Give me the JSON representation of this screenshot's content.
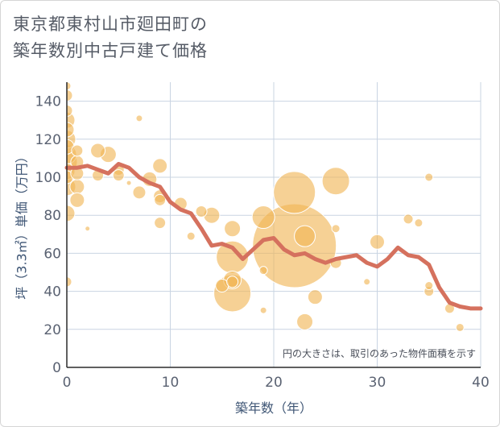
{
  "title_lines": [
    "東京都東村山市廻田町の",
    "築年数別中古戸建て価格"
  ],
  "note": "円の大きさは、取引のあった物件面積を示す",
  "colors": {
    "bubble_fill": "#f0b454",
    "bubble_stroke": "#ffffff",
    "line": "#d5715e",
    "grid": "#c9d4e2",
    "plot_bg": "#ffffff"
  },
  "chart_data": {
    "type": "scatter",
    "xlabel": "築年数（年）",
    "ylabel": "坪（3.3㎡）単価（万円）",
    "xlim": [
      0,
      40
    ],
    "ylim": [
      0,
      150
    ],
    "xticks": [
      0,
      10,
      20,
      30,
      40
    ],
    "yticks": [
      0,
      20,
      40,
      60,
      80,
      100,
      120,
      140
    ],
    "grid": true,
    "bubbles": [
      {
        "x": 0,
        "y": 148,
        "size": 5
      },
      {
        "x": 0,
        "y": 143,
        "size": 7
      },
      {
        "x": 0,
        "y": 135,
        "size": 7
      },
      {
        "x": 0,
        "y": 130,
        "size": 10
      },
      {
        "x": 0,
        "y": 125,
        "size": 9
      },
      {
        "x": 0,
        "y": 120,
        "size": 11
      },
      {
        "x": 0,
        "y": 116,
        "size": 9
      },
      {
        "x": 0,
        "y": 112,
        "size": 12
      },
      {
        "x": 0,
        "y": 108,
        "size": 13
      },
      {
        "x": 0,
        "y": 103,
        "size": 10
      },
      {
        "x": 0,
        "y": 100,
        "size": 8
      },
      {
        "x": 0,
        "y": 95,
        "size": 11
      },
      {
        "x": 0,
        "y": 81,
        "size": 10
      },
      {
        "x": 0,
        "y": 45,
        "size": 6
      },
      {
        "x": 1,
        "y": 114,
        "size": 7
      },
      {
        "x": 1,
        "y": 108,
        "size": 8
      },
      {
        "x": 1,
        "y": 102,
        "size": 8
      },
      {
        "x": 1,
        "y": 95,
        "size": 9
      },
      {
        "x": 1,
        "y": 88,
        "size": 9
      },
      {
        "x": 2,
        "y": 73,
        "size": 3
      },
      {
        "x": 3,
        "y": 114,
        "size": 9
      },
      {
        "x": 3,
        "y": 101,
        "size": 7
      },
      {
        "x": 4,
        "y": 112,
        "size": 10
      },
      {
        "x": 5,
        "y": 104,
        "size": 7
      },
      {
        "x": 5,
        "y": 101,
        "size": 7
      },
      {
        "x": 6,
        "y": 97,
        "size": 3
      },
      {
        "x": 7,
        "y": 131,
        "size": 4
      },
      {
        "x": 7,
        "y": 92,
        "size": 8
      },
      {
        "x": 8,
        "y": 99,
        "size": 9
      },
      {
        "x": 9,
        "y": 106,
        "size": 9
      },
      {
        "x": 9,
        "y": 90,
        "size": 8
      },
      {
        "x": 9,
        "y": 88,
        "size": 7
      },
      {
        "x": 9,
        "y": 76,
        "size": 7
      },
      {
        "x": 11,
        "y": 86,
        "size": 8
      },
      {
        "x": 12,
        "y": 69,
        "size": 5
      },
      {
        "x": 13,
        "y": 82,
        "size": 7
      },
      {
        "x": 14,
        "y": 80,
        "size": 10
      },
      {
        "x": 15,
        "y": 43,
        "size": 8
      },
      {
        "x": 16,
        "y": 73,
        "size": 10
      },
      {
        "x": 16,
        "y": 58,
        "size": 20
      },
      {
        "x": 16,
        "y": 46,
        "size": 11
      },
      {
        "x": 16,
        "y": 45,
        "size": 7
      },
      {
        "x": 16,
        "y": 39,
        "size": 23
      },
      {
        "x": 19,
        "y": 79,
        "size": 14
      },
      {
        "x": 19,
        "y": 51,
        "size": 5
      },
      {
        "x": 19,
        "y": 30,
        "size": 4
      },
      {
        "x": 22,
        "y": 92,
        "size": 26
      },
      {
        "x": 22,
        "y": 64,
        "size": 52
      },
      {
        "x": 23,
        "y": 69,
        "size": 13
      },
      {
        "x": 23,
        "y": 24,
        "size": 10
      },
      {
        "x": 24,
        "y": 37,
        "size": 9
      },
      {
        "x": 26,
        "y": 98,
        "size": 17
      },
      {
        "x": 26,
        "y": 73,
        "size": 5
      },
      {
        "x": 26,
        "y": 55,
        "size": 7
      },
      {
        "x": 29,
        "y": 45,
        "size": 4
      },
      {
        "x": 30,
        "y": 66,
        "size": 9
      },
      {
        "x": 33,
        "y": 78,
        "size": 6
      },
      {
        "x": 34,
        "y": 76,
        "size": 5
      },
      {
        "x": 35,
        "y": 100,
        "size": 5
      },
      {
        "x": 35,
        "y": 43,
        "size": 5
      },
      {
        "x": 35,
        "y": 40,
        "size": 6
      },
      {
        "x": 37,
        "y": 31,
        "size": 6
      },
      {
        "x": 38,
        "y": 21,
        "size": 5
      }
    ],
    "trend": {
      "x": [
        0,
        1,
        2,
        3,
        4,
        5,
        6,
        7,
        8,
        9,
        10,
        11,
        12,
        13,
        14,
        15,
        16,
        17,
        18,
        19,
        20,
        21,
        22,
        23,
        24,
        25,
        26,
        27,
        28,
        29,
        30,
        31,
        32,
        33,
        34,
        35,
        36,
        37,
        38,
        39,
        40
      ],
      "y": [
        105,
        105,
        106,
        104,
        102,
        107,
        105,
        100,
        97,
        95,
        87,
        83,
        81,
        73,
        64,
        65,
        63,
        57,
        62,
        67,
        68,
        62,
        59,
        60,
        57,
        55,
        57,
        58,
        59,
        55,
        53,
        57,
        63,
        59,
        58,
        54,
        42,
        34,
        32,
        31,
        31
      ]
    }
  }
}
